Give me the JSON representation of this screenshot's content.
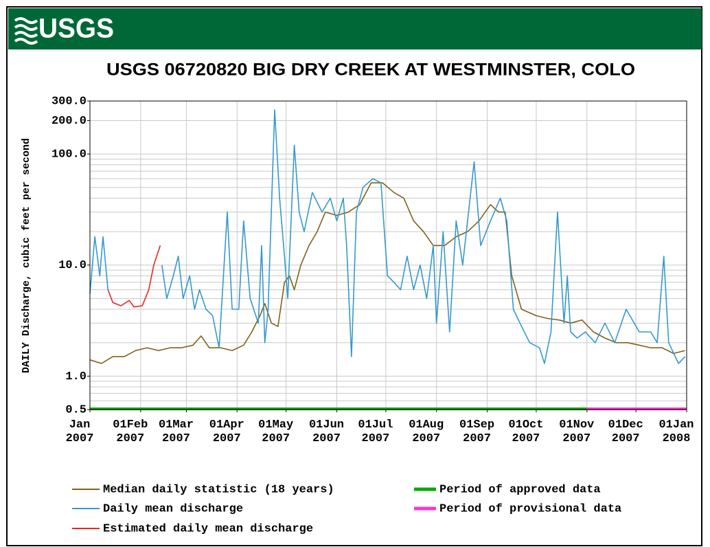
{
  "header": {
    "logo": "USGS"
  },
  "chart_data": {
    "type": "line",
    "title": "USGS 06720820 BIG DRY CREEK AT WESTMINSTER, COLO",
    "y_label": "DAILY Discharge, cubic feet per second",
    "log_y": true,
    "grid": true,
    "xlim": [
      "2007-01-01",
      "2008-01-01"
    ],
    "xticks": [
      {
        "value": "2007-01-01",
        "label": "Jan 2007"
      },
      {
        "value": "2007-02-01",
        "label": "01Feb 2007"
      },
      {
        "value": "2007-03-01",
        "label": "01Mar 2007"
      },
      {
        "value": "2007-04-01",
        "label": "01Apr 2007"
      },
      {
        "value": "2007-05-01",
        "label": "01May 2007"
      },
      {
        "value": "2007-06-01",
        "label": "01Jun 2007"
      },
      {
        "value": "2007-07-01",
        "label": "01Jul 2007"
      },
      {
        "value": "2007-08-01",
        "label": "01Aug 2007"
      },
      {
        "value": "2007-09-01",
        "label": "01Sep 2007"
      },
      {
        "value": "2007-10-01",
        "label": "01Oct 2007"
      },
      {
        "value": "2007-11-01",
        "label": "01Nov 2007"
      },
      {
        "value": "2007-12-01",
        "label": "01Dec 2007"
      },
      {
        "value": "2008-01-01",
        "label": "01Jan 2008"
      }
    ],
    "ylim": [
      0.5,
      300
    ],
    "yticks": [
      {
        "value": 300,
        "label": "300.0"
      },
      {
        "value": 200,
        "label": "200.0"
      },
      {
        "value": 100,
        "label": "100.0"
      },
      {
        "value": 10,
        "label": "10.0"
      },
      {
        "value": 1,
        "label": "1.0"
      },
      {
        "value": 0.5,
        "label": "0.5"
      }
    ],
    "minor_yticks": [
      0.6,
      0.7,
      0.8,
      0.9,
      2,
      3,
      4,
      5,
      6,
      7,
      8,
      9,
      20,
      30,
      40,
      50,
      60,
      70,
      80,
      90
    ],
    "series": [
      {
        "name": "Median daily statistic (18 years)",
        "color": "#806018",
        "x": [
          "2007-01-01",
          "2007-01-08",
          "2007-01-15",
          "2007-01-22",
          "2007-01-29",
          "2007-02-05",
          "2007-02-12",
          "2007-02-19",
          "2007-02-26",
          "2007-03-05",
          "2007-03-10",
          "2007-03-15",
          "2007-03-22",
          "2007-03-29",
          "2007-04-05",
          "2007-04-10",
          "2007-04-15",
          "2007-04-18",
          "2007-04-22",
          "2007-04-26",
          "2007-04-30",
          "2007-05-03",
          "2007-05-06",
          "2007-05-10",
          "2007-05-15",
          "2007-05-20",
          "2007-05-25",
          "2007-06-01",
          "2007-06-08",
          "2007-06-15",
          "2007-06-22",
          "2007-06-29",
          "2007-07-06",
          "2007-07-12",
          "2007-07-18",
          "2007-07-24",
          "2007-07-30",
          "2007-08-06",
          "2007-08-13",
          "2007-08-20",
          "2007-08-27",
          "2007-09-03",
          "2007-09-08",
          "2007-09-12",
          "2007-09-16",
          "2007-09-22",
          "2007-10-01",
          "2007-10-08",
          "2007-10-15",
          "2007-10-22",
          "2007-10-29",
          "2007-11-05",
          "2007-11-12",
          "2007-11-19",
          "2007-11-26",
          "2007-12-03",
          "2007-12-10",
          "2007-12-17",
          "2007-12-24",
          "2007-12-31"
        ],
        "values": [
          1.4,
          1.3,
          1.5,
          1.5,
          1.7,
          1.8,
          1.7,
          1.8,
          1.8,
          1.9,
          2.3,
          1.8,
          1.8,
          1.7,
          1.9,
          2.5,
          3.5,
          4.5,
          3,
          2.8,
          7,
          8,
          6,
          10,
          15,
          20,
          30,
          28,
          30,
          35,
          55,
          55,
          45,
          40,
          25,
          20,
          15,
          15,
          18,
          20,
          25,
          35,
          30,
          30,
          8,
          4,
          3.5,
          3.3,
          3.2,
          3,
          3.2,
          2.5,
          2.2,
          2.0,
          2.0,
          1.9,
          1.8,
          1.8,
          1.6,
          1.7
        ]
      },
      {
        "name": "Daily mean discharge",
        "color": "#3399cc",
        "x": [
          "2007-01-01",
          "2007-01-04",
          "2007-01-07",
          "2007-01-09",
          "2007-01-12",
          "2007-01-13",
          "2007-02-14",
          "2007-02-17",
          "2007-02-21",
          "2007-02-24",
          "2007-02-27",
          "2007-03-03",
          "2007-03-06",
          "2007-03-09",
          "2007-03-13",
          "2007-03-17",
          "2007-03-21",
          "2007-03-26",
          "2007-03-29",
          "2007-04-02",
          "2007-04-05",
          "2007-04-09",
          "2007-04-14",
          "2007-04-16",
          "2007-04-18",
          "2007-04-20",
          "2007-04-24",
          "2007-04-27",
          "2007-04-30",
          "2007-05-02",
          "2007-05-06",
          "2007-05-09",
          "2007-05-12",
          "2007-05-17",
          "2007-05-23",
          "2007-05-28",
          "2007-06-01",
          "2007-06-05",
          "2007-06-07",
          "2007-06-10",
          "2007-06-13",
          "2007-06-17",
          "2007-06-23",
          "2007-06-28",
          "2007-07-02",
          "2007-07-06",
          "2007-07-10",
          "2007-07-14",
          "2007-07-18",
          "2007-07-22",
          "2007-07-26",
          "2007-07-30",
          "2007-08-01",
          "2007-08-05",
          "2007-08-09",
          "2007-08-13",
          "2007-08-17",
          "2007-08-24",
          "2007-08-28",
          "2007-09-03",
          "2007-09-09",
          "2007-09-13",
          "2007-09-17",
          "2007-09-21",
          "2007-09-27",
          "2007-10-03",
          "2007-10-06",
          "2007-10-10",
          "2007-10-14",
          "2007-10-18",
          "2007-10-20",
          "2007-10-22",
          "2007-10-26",
          "2007-10-31",
          "2007-11-06",
          "2007-11-12",
          "2007-11-18",
          "2007-11-25",
          "2007-12-03",
          "2007-12-10",
          "2007-12-14",
          "2007-12-18",
          "2007-12-21",
          "2007-12-27",
          "2007-12-31"
        ],
        "values": [
          5.5,
          18,
          8,
          18,
          6,
          null,
          10,
          5,
          8,
          12,
          5,
          8,
          4,
          6,
          4,
          3.5,
          1.8,
          30,
          4,
          4,
          25,
          5,
          3,
          15,
          2,
          4,
          250,
          40,
          12,
          5,
          120,
          30,
          20,
          45,
          30,
          40,
          25,
          40,
          15,
          1.5,
          30,
          50,
          60,
          55,
          8,
          7,
          6,
          12,
          6,
          10,
          5,
          15,
          3,
          20,
          2.5,
          25,
          10,
          85,
          15,
          25,
          40,
          25,
          4,
          3,
          2,
          1.8,
          1.3,
          2.5,
          30,
          3,
          8,
          2.5,
          2.2,
          2.5,
          2,
          3,
          2,
          4,
          2.5,
          2.5,
          2,
          12,
          2,
          1.3,
          1.5
        ]
      },
      {
        "name": "Estimated daily mean discharge",
        "color": "#ee2222",
        "x": [
          "2007-01-12",
          "2007-01-15",
          "2007-01-20",
          "2007-01-25",
          "2007-01-28",
          "2007-02-02",
          "2007-02-06",
          "2007-02-09",
          "2007-02-13"
        ],
        "values": [
          6,
          4.6,
          4.3,
          4.8,
          4.2,
          4.3,
          6,
          10,
          15
        ]
      }
    ],
    "periods": [
      {
        "name": "Period of approved data",
        "color": "#00aa00",
        "start": "2007-01-01",
        "end": "2007-11-01"
      },
      {
        "name": "Period of provisional data",
        "color": "#ff33cc",
        "start": "2007-11-01",
        "end": "2008-01-01"
      }
    ]
  }
}
